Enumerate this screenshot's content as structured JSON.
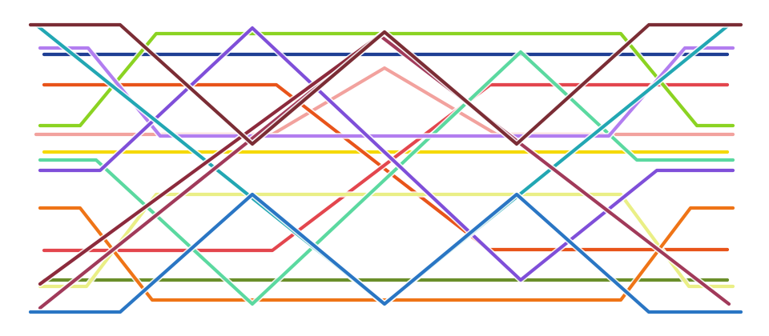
{
  "diagram": {
    "lines": [
      {
        "id": "dark-red",
        "color": "#7b2d35"
      },
      {
        "id": "teal",
        "color": "#22a7b3"
      },
      {
        "id": "light-purple",
        "color": "#b27ef0"
      },
      {
        "id": "navy",
        "color": "#1f3f94"
      },
      {
        "id": "lime",
        "color": "#8bd322"
      },
      {
        "id": "orange-red",
        "color": "#e8541a"
      },
      {
        "id": "violet",
        "color": "#7f4fd9"
      },
      {
        "id": "salmon",
        "color": "#f2a29e"
      },
      {
        "id": "yellow",
        "color": "#f5d90a"
      },
      {
        "id": "mint",
        "color": "#5bd9a0"
      },
      {
        "id": "pale-yellow",
        "color": "#eaef86"
      },
      {
        "id": "orange",
        "color": "#ef7417"
      },
      {
        "id": "red",
        "color": "#e3464e"
      },
      {
        "id": "olive",
        "color": "#6b8f2a"
      },
      {
        "id": "plum",
        "color": "#a13a5a"
      },
      {
        "id": "blue",
        "color": "#2a76c4"
      },
      {
        "id": "maroon",
        "color": "#8c2a3c"
      }
    ]
  }
}
